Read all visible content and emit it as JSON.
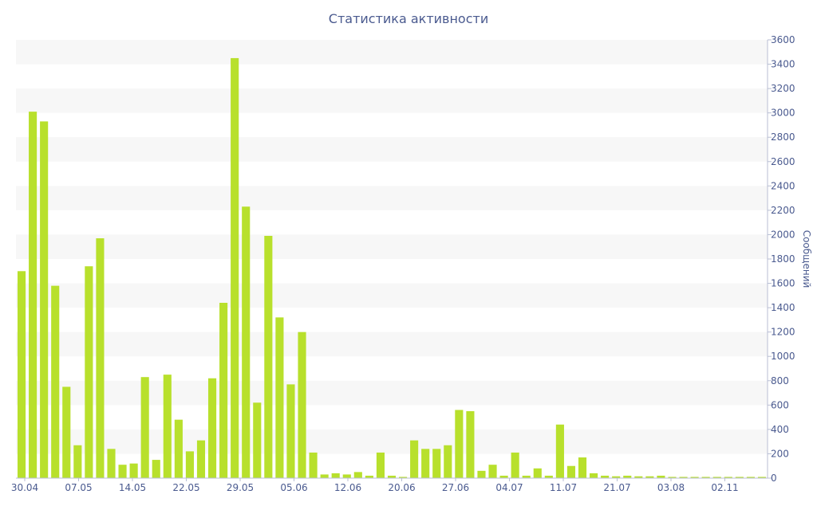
{
  "chart_data": {
    "type": "bar",
    "title": "Статистика активности",
    "xlabel": "",
    "ylabel": "Сообщений",
    "ylim": [
      0,
      3600
    ],
    "y_ticks": [
      0,
      200,
      400,
      600,
      800,
      1000,
      1200,
      1400,
      1600,
      1800,
      2000,
      2200,
      2400,
      2600,
      2800,
      3000,
      3200,
      3400,
      3600
    ],
    "x_tick_labels": [
      "30.04",
      "07.05",
      "14.05",
      "22.05",
      "29.05",
      "05.06",
      "12.06",
      "20.06",
      "27.06",
      "04.07",
      "11.07",
      "21.07",
      "03.08",
      "02.11"
    ],
    "y_axis_position": "right",
    "grid": "horizontal bands",
    "legend": "none",
    "bar_color": "#b8e02c",
    "band_color": "#f7f7f7",
    "text_color": "#4a5a8f",
    "series": [
      {
        "values": [
          1700,
          3010,
          2930,
          1580,
          750,
          270,
          1740,
          1970,
          240,
          110,
          120,
          830,
          150,
          850,
          480,
          220,
          310,
          820,
          1440,
          3450,
          2230,
          620,
          1990,
          1320,
          770,
          1200,
          210,
          30,
          40,
          30,
          50,
          20,
          210,
          20,
          10,
          310,
          240,
          240,
          270,
          560,
          550,
          60,
          110,
          20,
          210,
          20,
          80,
          20,
          440,
          100,
          170,
          40,
          20,
          15,
          20,
          15,
          15,
          20,
          10,
          10,
          10,
          10,
          10,
          10,
          10,
          10,
          10
        ]
      }
    ]
  }
}
